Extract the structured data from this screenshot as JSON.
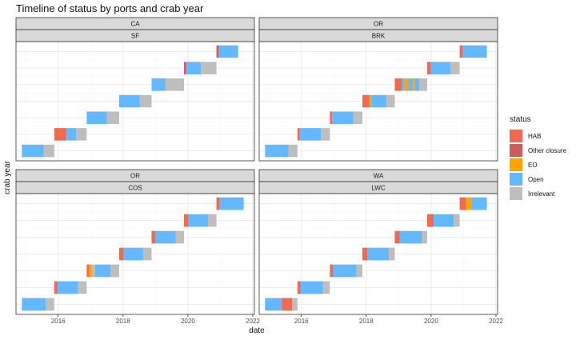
{
  "page": {
    "title": "Timeline of status by ports and crab year"
  },
  "colors": {
    "HAB": "#EE6A50",
    "Other closure": "#CD5C5C",
    "EO": "#FFA500",
    "Open": "#63B8FF",
    "Irrelevant": "#BEBEBE"
  },
  "chart_data": {
    "type": "bar",
    "subtype": "timeline-faceted",
    "xlabel": "date",
    "ylabel": "crab year",
    "xlim": [
      2014.7,
      2022.05
    ],
    "x_ticks": [
      2016,
      2018,
      2020,
      2022
    ],
    "x_tick_labels": [
      "2016",
      "2018",
      "2020",
      "2022"
    ],
    "y_tick_labels": [],
    "grid": true,
    "legend": {
      "title": "status",
      "position": "right",
      "entries": [
        "HAB",
        "Other closure",
        "EO",
        "Open",
        "Irrelevant"
      ]
    },
    "panels": [
      {
        "state": "CA",
        "port": "SF",
        "rows": [
          [
            [
              2014.88,
              2015.55,
              "Open"
            ],
            [
              2015.55,
              2015.88,
              "Irrelevant"
            ]
          ],
          [
            [
              2015.88,
              2016.25,
              "HAB"
            ],
            [
              2016.25,
              2016.55,
              "Open"
            ],
            [
              2016.55,
              2016.88,
              "Irrelevant"
            ]
          ],
          [
            [
              2016.88,
              2017.5,
              "Open"
            ],
            [
              2017.5,
              2017.88,
              "Irrelevant"
            ]
          ],
          [
            [
              2017.88,
              2018.52,
              "Open"
            ],
            [
              2018.52,
              2018.88,
              "Irrelevant"
            ]
          ],
          [
            [
              2018.88,
              2019.3,
              "Open"
            ],
            [
              2019.3,
              2019.88,
              "Irrelevant"
            ]
          ],
          [
            [
              2019.88,
              2019.95,
              "Other closure"
            ],
            [
              2019.95,
              2020.4,
              "Open"
            ],
            [
              2020.4,
              2020.88,
              "Irrelevant"
            ]
          ],
          [
            [
              2020.88,
              2020.95,
              "Other closure"
            ],
            [
              2020.95,
              2021.55,
              "Open"
            ]
          ]
        ]
      },
      {
        "state": "OR",
        "port": "BRK",
        "rows": [
          [
            [
              2014.88,
              2015.6,
              "Open"
            ],
            [
              2015.6,
              2015.88,
              "Irrelevant"
            ]
          ],
          [
            [
              2015.88,
              2015.95,
              "HAB"
            ],
            [
              2015.95,
              2016.6,
              "Open"
            ],
            [
              2016.6,
              2016.88,
              "Irrelevant"
            ]
          ],
          [
            [
              2016.88,
              2016.95,
              "HAB"
            ],
            [
              2016.95,
              2017.6,
              "Open"
            ],
            [
              2017.6,
              2017.88,
              "Irrelevant"
            ]
          ],
          [
            [
              2017.88,
              2018.1,
              "HAB"
            ],
            [
              2018.1,
              2018.16,
              "EO"
            ],
            [
              2018.16,
              2018.62,
              "Open"
            ],
            [
              2018.62,
              2018.88,
              "Irrelevant"
            ]
          ],
          [
            [
              2018.88,
              2019.1,
              "HAB"
            ],
            [
              2019.1,
              2019.18,
              "Open"
            ],
            [
              2019.18,
              2019.3,
              "EO"
            ],
            [
              2019.3,
              2019.44,
              "Open"
            ],
            [
              2019.44,
              2019.5,
              "EO"
            ],
            [
              2019.5,
              2019.64,
              "Open"
            ],
            [
              2019.64,
              2019.88,
              "Irrelevant"
            ]
          ],
          [
            [
              2019.88,
              2019.99,
              "HAB"
            ],
            [
              2019.99,
              2020.6,
              "Open"
            ],
            [
              2020.6,
              2020.88,
              "Irrelevant"
            ]
          ],
          [
            [
              2020.88,
              2020.98,
              "HAB"
            ],
            [
              2020.98,
              2021.72,
              "Open"
            ]
          ]
        ]
      },
      {
        "state": "OR",
        "port": "COS",
        "rows": [
          [
            [
              2014.88,
              2015.62,
              "Open"
            ],
            [
              2015.62,
              2015.88,
              "Irrelevant"
            ]
          ],
          [
            [
              2015.88,
              2015.98,
              "HAB"
            ],
            [
              2015.98,
              2016.6,
              "Open"
            ],
            [
              2016.6,
              2016.88,
              "Irrelevant"
            ]
          ],
          [
            [
              2016.88,
              2016.96,
              "HAB"
            ],
            [
              2016.96,
              2017.04,
              "EO"
            ],
            [
              2017.04,
              2017.14,
              "Irrelevant"
            ],
            [
              2017.14,
              2017.62,
              "Open"
            ],
            [
              2017.62,
              2017.88,
              "Irrelevant"
            ]
          ],
          [
            [
              2017.88,
              2018.02,
              "HAB"
            ],
            [
              2018.02,
              2018.62,
              "Open"
            ],
            [
              2018.62,
              2018.88,
              "Irrelevant"
            ]
          ],
          [
            [
              2018.88,
              2019.0,
              "HAB"
            ],
            [
              2019.0,
              2019.62,
              "Open"
            ],
            [
              2019.62,
              2019.88,
              "Irrelevant"
            ]
          ],
          [
            [
              2019.88,
              2020.02,
              "HAB"
            ],
            [
              2020.02,
              2020.62,
              "Open"
            ],
            [
              2020.62,
              2020.88,
              "Irrelevant"
            ]
          ],
          [
            [
              2020.88,
              2020.98,
              "HAB"
            ],
            [
              2020.98,
              2021.72,
              "Open"
            ]
          ]
        ]
      },
      {
        "state": "WA",
        "port": "LWC",
        "rows": [
          [
            [
              2014.88,
              2015.4,
              "Open"
            ],
            [
              2015.4,
              2015.72,
              "HAB"
            ],
            [
              2015.72,
              2015.88,
              "Irrelevant"
            ]
          ],
          [
            [
              2015.88,
              2015.98,
              "HAB"
            ],
            [
              2015.98,
              2016.66,
              "Open"
            ],
            [
              2016.66,
              2016.88,
              "Irrelevant"
            ]
          ],
          [
            [
              2016.88,
              2016.98,
              "HAB"
            ],
            [
              2016.98,
              2017.7,
              "Open"
            ],
            [
              2017.7,
              2017.88,
              "Irrelevant"
            ]
          ],
          [
            [
              2017.88,
              2018.03,
              "HAB"
            ],
            [
              2018.03,
              2018.7,
              "Open"
            ],
            [
              2018.7,
              2018.88,
              "Irrelevant"
            ]
          ],
          [
            [
              2018.88,
              2019.03,
              "HAB"
            ],
            [
              2019.03,
              2019.72,
              "Open"
            ],
            [
              2019.72,
              2019.88,
              "Irrelevant"
            ]
          ],
          [
            [
              2019.88,
              2020.08,
              "HAB"
            ],
            [
              2020.08,
              2020.7,
              "Open"
            ],
            [
              2020.7,
              2020.88,
              "Irrelevant"
            ]
          ],
          [
            [
              2020.88,
              2021.08,
              "HAB"
            ],
            [
              2021.08,
              2021.26,
              "EO"
            ],
            [
              2021.26,
              2021.72,
              "Open"
            ]
          ]
        ]
      }
    ]
  }
}
